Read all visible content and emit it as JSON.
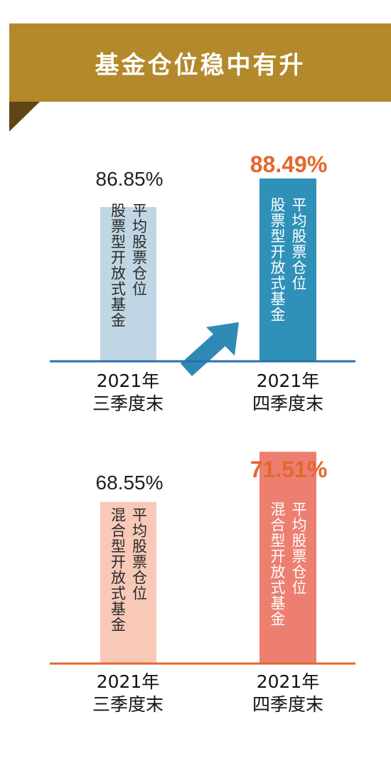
{
  "header": {
    "title": "基金仓位稳中有升"
  },
  "colors": {
    "banner": "#b3892b",
    "banner_fold": "#5e4617",
    "highlight_value": "#e4672b",
    "arrow": "#2e8ab5",
    "stock_q3_bar": "#c0d6e4",
    "stock_q4_bar": "#2f91b8",
    "stock_baseline": "#2b6fae",
    "mixed_q3_bar": "#f7c9b6",
    "mixed_q4_bar": "#ec7f70",
    "mixed_baseline": "#e4672b"
  },
  "icons": [
    "up-right-arrow-icon"
  ],
  "chart_data": [
    {
      "type": "bar",
      "categories": [
        "2021年\n三季度末",
        "2021年\n四季度末"
      ],
      "values": [
        86.85,
        88.49
      ],
      "value_labels": [
        "86.85%",
        "88.49%"
      ],
      "bar_text": [
        "股票型开放式基金",
        "平均股票仓位"
      ],
      "x_tick_lines": [
        [
          "2021年",
          "三季度末"
        ],
        [
          "2021年",
          "四季度末"
        ]
      ],
      "highlight_index": 1,
      "unit": "%"
    },
    {
      "type": "bar",
      "categories": [
        "2021年\n三季度末",
        "2021年\n四季度末"
      ],
      "values": [
        68.55,
        71.51
      ],
      "value_labels": [
        "68.55%",
        "71.51%"
      ],
      "bar_text": [
        "混合型开放式基金",
        "平均股票仓位"
      ],
      "x_tick_lines": [
        [
          "2021年",
          "三季度末"
        ],
        [
          "2021年",
          "四季度末"
        ]
      ],
      "highlight_index": 1,
      "unit": "%"
    }
  ]
}
